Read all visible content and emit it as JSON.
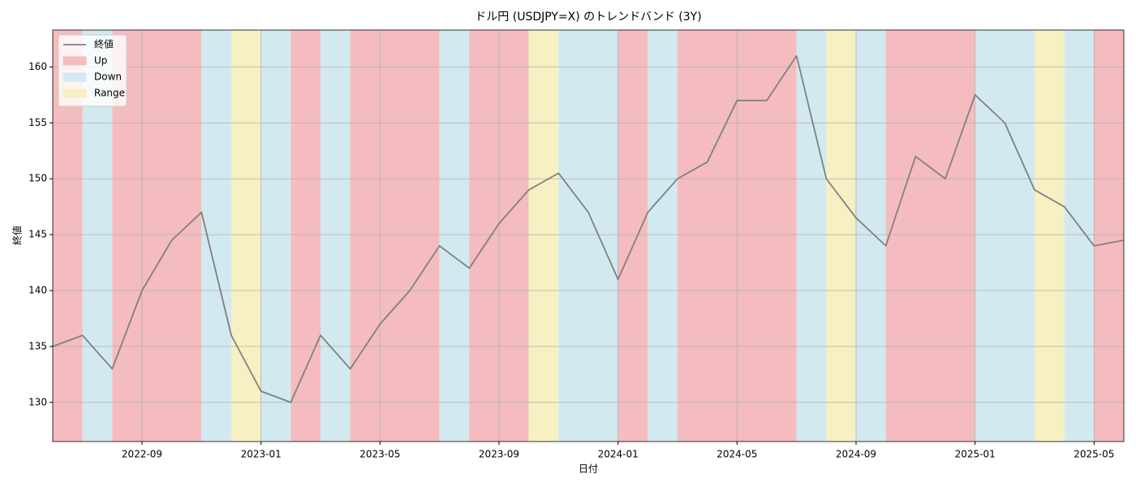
{
  "chart_data": {
    "type": "line",
    "title": "ドル円 (USDJPY=X) のトレンドバンド (3Y)",
    "x_label": "日付",
    "y_label": "終値",
    "x": [
      "2022-06",
      "2022-07",
      "2022-08",
      "2022-09",
      "2022-10",
      "2022-11",
      "2022-12",
      "2023-01",
      "2023-02",
      "2023-03",
      "2023-04",
      "2023-05",
      "2023-06",
      "2023-07",
      "2023-08",
      "2023-09",
      "2023-10",
      "2023-11",
      "2023-12",
      "2024-01",
      "2024-02",
      "2024-03",
      "2024-04",
      "2024-05",
      "2024-06",
      "2024-07",
      "2024-08",
      "2024-09",
      "2024-10",
      "2024-11",
      "2024-12",
      "2025-01",
      "2025-02",
      "2025-03",
      "2025-04",
      "2025-05",
      "2025-06"
    ],
    "series": [
      {
        "name": "終値",
        "color": "#808080",
        "values": [
          135,
          136,
          133,
          140,
          144.5,
          147,
          136,
          131,
          130,
          136,
          133,
          137,
          140,
          144,
          142,
          146,
          149,
          150.5,
          147,
          141,
          147,
          150,
          151.5,
          157,
          157,
          161,
          150,
          146.5,
          144,
          152,
          150,
          157.5,
          155,
          149,
          147.5,
          144,
          144.5
        ]
      }
    ],
    "xlim": [
      "2022-06",
      "2025-06"
    ],
    "xticks": [
      "2022-09",
      "2023-01",
      "2023-05",
      "2023-09",
      "2024-01",
      "2024-05",
      "2024-09",
      "2025-01",
      "2025-05"
    ],
    "ylim": [
      126.5,
      163.3
    ],
    "yticks": [
      130,
      135,
      140,
      145,
      150,
      155,
      160
    ],
    "grid": true,
    "legend": "upper left",
    "band_styles": [
      {
        "name": "Up",
        "color": "#f4bcbe"
      },
      {
        "name": "Down",
        "color": "#d2e9f0"
      },
      {
        "name": "Range",
        "color": "#f6f0c2"
      }
    ],
    "bands": [
      {
        "from": "2022-06",
        "to": "2022-07",
        "trend": 0
      },
      {
        "from": "2022-07",
        "to": "2022-08",
        "trend": 1
      },
      {
        "from": "2022-08",
        "to": "2022-11",
        "trend": 0
      },
      {
        "from": "2022-11",
        "to": "2022-12",
        "trend": 1
      },
      {
        "from": "2022-12",
        "to": "2023-01",
        "trend": 2
      },
      {
        "from": "2023-01",
        "to": "2023-02",
        "trend": 1
      },
      {
        "from": "2023-02",
        "to": "2023-03",
        "trend": 0
      },
      {
        "from": "2023-03",
        "to": "2023-04",
        "trend": 1
      },
      {
        "from": "2023-04",
        "to": "2023-07",
        "trend": 0
      },
      {
        "from": "2023-07",
        "to": "2023-08",
        "trend": 1
      },
      {
        "from": "2023-08",
        "to": "2023-10",
        "trend": 0
      },
      {
        "from": "2023-10",
        "to": "2023-11",
        "trend": 2
      },
      {
        "from": "2023-11",
        "to": "2024-01",
        "trend": 1
      },
      {
        "from": "2024-01",
        "to": "2024-02",
        "trend": 0
      },
      {
        "from": "2024-02",
        "to": "2024-03",
        "trend": 1
      },
      {
        "from": "2024-03",
        "to": "2024-07",
        "trend": 0
      },
      {
        "from": "2024-07",
        "to": "2024-08",
        "trend": 1
      },
      {
        "from": "2024-08",
        "to": "2024-09",
        "trend": 2
      },
      {
        "from": "2024-09",
        "to": "2024-10",
        "trend": 1
      },
      {
        "from": "2024-10",
        "to": "2024-12",
        "trend": 0
      },
      {
        "from": "2024-12",
        "to": "2025-01",
        "trend": 0
      },
      {
        "from": "2025-01",
        "to": "2025-03",
        "trend": 1
      },
      {
        "from": "2025-03",
        "to": "2025-04",
        "trend": 2
      },
      {
        "from": "2025-04",
        "to": "2025-05",
        "trend": 1
      },
      {
        "from": "2025-05",
        "to": "2025-06",
        "trend": 0
      }
    ]
  }
}
